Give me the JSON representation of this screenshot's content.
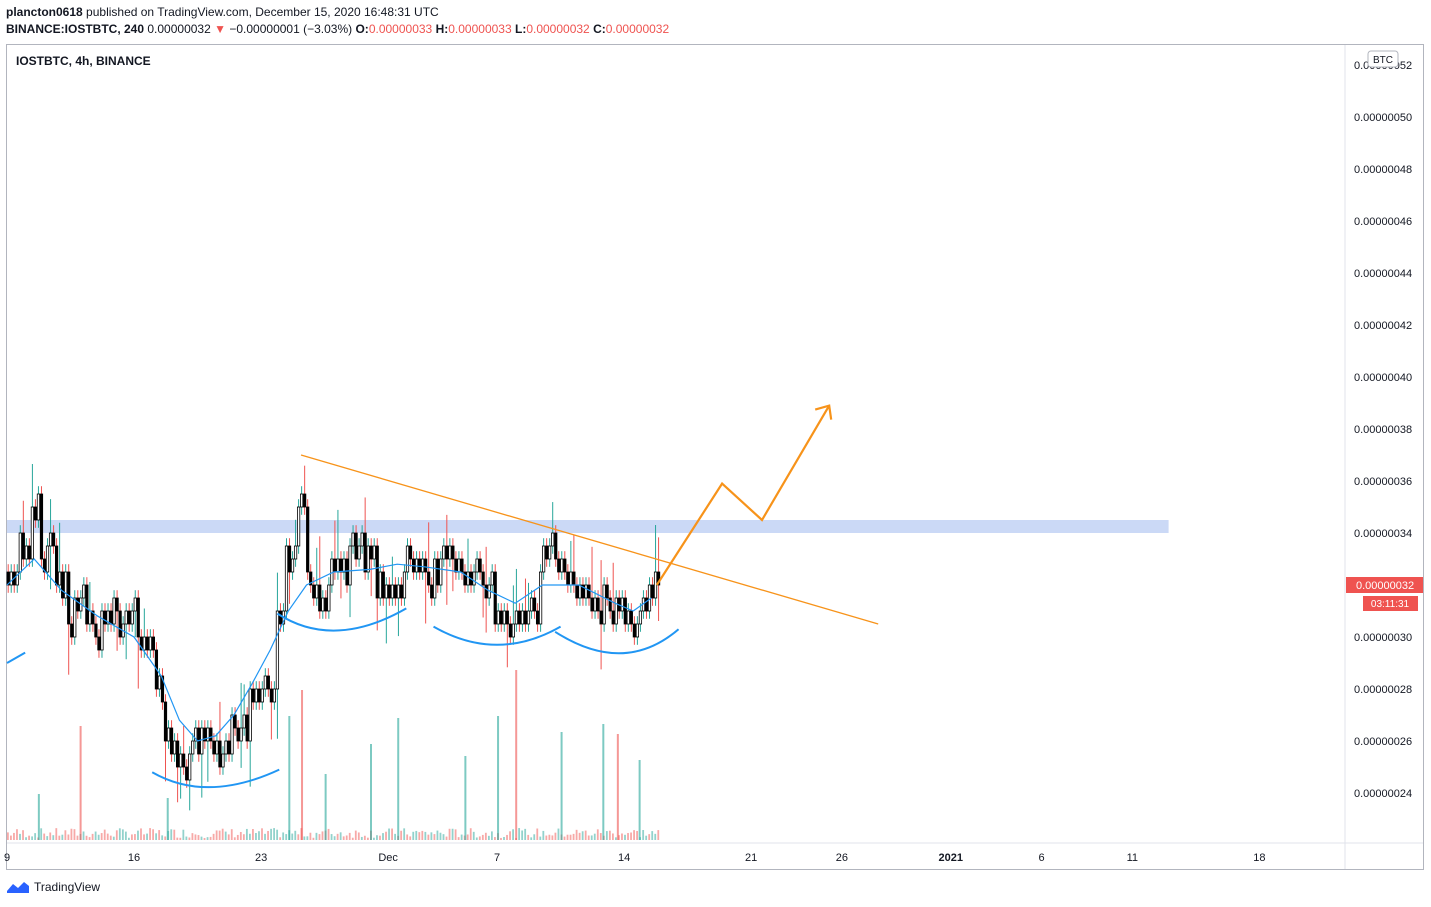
{
  "header": {
    "author": "plancton0618",
    "published_text": "published on TradingView.com, December 15, 2020 16:48:31 UTC",
    "symbol": "BINANCE:IOSTBTC, 240",
    "last_price": "0.00000032",
    "change": "−0.00000001 (−3.03%)",
    "open_label": "O:",
    "open": "0.00000033",
    "high_label": "H:",
    "high": "0.00000033",
    "low_label": "L:",
    "low": "0.00000032",
    "close_label": "C:",
    "close": "0.00000032"
  },
  "chart_title": "IOSTBTC, 4h, BINANCE",
  "currency_badge": "BTC",
  "price_tag": {
    "value": "0.00000032",
    "countdown": "03:11:31"
  },
  "footer": {
    "brand": "TradingView"
  },
  "colors": {
    "up": "#26a69a",
    "down": "#ef5350",
    "ma": "#2196f3",
    "trend": "#f7931a",
    "zone": "#c5d5f5",
    "arcs": "#2196f3"
  },
  "chart_data": {
    "type": "candlestick",
    "y_scale_multiplier": 1e-08,
    "ylim": [
      22.2,
      53.5
    ],
    "y_ticks": [
      {
        "v": 52,
        "label": "0.00000052"
      },
      {
        "v": 50,
        "label": "0.00000050"
      },
      {
        "v": 48,
        "label": "0.00000048"
      },
      {
        "v": 46,
        "label": "0.00000046"
      },
      {
        "v": 44,
        "label": "0.00000044"
      },
      {
        "v": 42,
        "label": "0.00000042"
      },
      {
        "v": 40,
        "label": "0.00000040"
      },
      {
        "v": 38,
        "label": "0.00000038"
      },
      {
        "v": 36,
        "label": "0.00000036"
      },
      {
        "v": 34,
        "label": "0.00000034"
      },
      {
        "v": 30,
        "label": "0.00000030"
      },
      {
        "v": 28,
        "label": "0.00000028"
      },
      {
        "v": 26,
        "label": "0.00000026"
      },
      {
        "v": 24,
        "label": "0.00000024"
      }
    ],
    "x_ticks": [
      {
        "day": 9,
        "label": "9",
        "bold": false
      },
      {
        "day": 16,
        "label": "16",
        "bold": false
      },
      {
        "day": 23,
        "label": "23",
        "bold": false
      },
      {
        "day": 30,
        "label": "Dec",
        "bold": false
      },
      {
        "day": 36,
        "label": "7",
        "bold": false
      },
      {
        "day": 43,
        "label": "14",
        "bold": false
      },
      {
        "day": 50,
        "label": "21",
        "bold": false
      },
      {
        "day": 55,
        "label": "26",
        "bold": false
      },
      {
        "day": 61,
        "label": "2021",
        "bold": true
      },
      {
        "day": 66,
        "label": "6",
        "bold": false
      },
      {
        "day": 71,
        "label": "11",
        "bold": false
      },
      {
        "day": 78,
        "label": "18",
        "bold": false
      }
    ],
    "price_segments": [
      [
        9.0,
        32.5
      ],
      [
        9.5,
        33.5
      ],
      [
        10.3,
        35
      ],
      [
        10.8,
        33.5
      ],
      [
        11.5,
        32
      ],
      [
        12.2,
        31
      ],
      [
        13.2,
        30.5
      ],
      [
        14.0,
        31
      ],
      [
        15.0,
        30.5
      ],
      [
        16.2,
        29.5
      ],
      [
        17.0,
        28
      ],
      [
        17.6,
        26
      ],
      [
        18.2,
        25.5
      ],
      [
        19.0,
        26
      ],
      [
        20.3,
        25.5
      ],
      [
        21.2,
        26.5
      ],
      [
        22.2,
        28
      ],
      [
        23.0,
        28.5
      ],
      [
        23.8,
        31
      ],
      [
        24.3,
        33
      ],
      [
        24.9,
        35
      ],
      [
        25.4,
        32
      ],
      [
        26.0,
        31.5
      ],
      [
        26.8,
        32.5
      ],
      [
        27.8,
        33.5
      ],
      [
        28.6,
        33
      ],
      [
        29.2,
        32
      ],
      [
        30.0,
        31.5
      ],
      [
        30.8,
        33
      ],
      [
        31.8,
        32.5
      ],
      [
        32.8,
        33
      ],
      [
        33.8,
        32.5
      ],
      [
        34.8,
        32
      ],
      [
        35.8,
        31
      ],
      [
        36.8,
        30.5
      ],
      [
        37.8,
        31
      ],
      [
        38.3,
        33
      ],
      [
        39.2,
        32.5
      ],
      [
        40.2,
        32
      ],
      [
        41.2,
        31.5
      ],
      [
        42.2,
        31
      ],
      [
        43.2,
        30.5
      ],
      [
        43.8,
        31
      ],
      [
        44.3,
        32
      ],
      [
        44.8,
        32.5
      ]
    ],
    "ma": [
      [
        9.0,
        32
      ],
      [
        10.5,
        33
      ],
      [
        12.0,
        31.8
      ],
      [
        14.0,
        30.8
      ],
      [
        16.0,
        30
      ],
      [
        17.5,
        28.5
      ],
      [
        18.5,
        26.8
      ],
      [
        19.5,
        26
      ],
      [
        20.5,
        26.2
      ],
      [
        21.5,
        27
      ],
      [
        22.5,
        28.2
      ],
      [
        23.5,
        29.5
      ],
      [
        24.5,
        31
      ],
      [
        25.5,
        32
      ],
      [
        27.0,
        32.5
      ],
      [
        29.0,
        32.6
      ],
      [
        30.5,
        32.8
      ],
      [
        32.0,
        32.7
      ],
      [
        34.0,
        32.5
      ],
      [
        35.5,
        31.8
      ],
      [
        37.0,
        31.3
      ],
      [
        38.5,
        32
      ],
      [
        40.5,
        32
      ],
      [
        42.5,
        31.3
      ],
      [
        43.5,
        31
      ],
      [
        44.5,
        31.5
      ]
    ],
    "resistance_zone": {
      "x": [
        9,
        73
      ],
      "y": [
        34.0,
        34.5
      ]
    },
    "trendline": [
      [
        25.2,
        37.0
      ],
      [
        57.0,
        30.5
      ]
    ],
    "projection": [
      [
        44.8,
        32.0
      ],
      [
        48.4,
        35.9
      ],
      [
        50.6,
        34.5
      ],
      [
        54.3,
        38.9
      ]
    ],
    "arcs": [
      {
        "from": [
          17.0,
          24.8
        ],
        "ctrl": [
          20.0,
          23.6
        ],
        "to": [
          24.0,
          24.9
        ]
      },
      {
        "from": [
          23.9,
          30.9
        ],
        "ctrl": [
          27.0,
          29.5
        ],
        "to": [
          31.0,
          31.1
        ]
      },
      {
        "from": [
          32.5,
          30.4
        ],
        "ctrl": [
          36.0,
          29.0
        ],
        "to": [
          39.5,
          30.4
        ]
      },
      {
        "from": [
          39.2,
          30.2
        ],
        "ctrl": [
          43.0,
          28.5
        ],
        "to": [
          46.0,
          30.3
        ]
      },
      {
        "from": [
          9.0,
          29.0
        ],
        "ctrl": [
          9.5,
          29.2
        ],
        "to": [
          10.0,
          29.4
        ]
      }
    ],
    "volume_spikes": [
      {
        "x": 10.7,
        "h": 0.23,
        "up": true
      },
      {
        "x": 13.0,
        "h": 0.57,
        "up": false
      },
      {
        "x": 17.8,
        "h": 0.21,
        "up": true
      },
      {
        "x": 24.5,
        "h": 0.62,
        "up": true
      },
      {
        "x": 25.2,
        "h": 0.75,
        "up": false
      },
      {
        "x": 26.5,
        "h": 0.33,
        "up": true
      },
      {
        "x": 29.0,
        "h": 0.48,
        "up": true
      },
      {
        "x": 30.5,
        "h": 0.61,
        "up": true
      },
      {
        "x": 34.2,
        "h": 0.42,
        "up": true
      },
      {
        "x": 36.0,
        "h": 0.62,
        "up": true
      },
      {
        "x": 37.0,
        "h": 0.85,
        "up": false
      },
      {
        "x": 39.5,
        "h": 0.54,
        "up": true
      },
      {
        "x": 41.8,
        "h": 0.58,
        "up": true
      },
      {
        "x": 42.6,
        "h": 0.53,
        "up": false
      },
      {
        "x": 43.8,
        "h": 0.4,
        "up": true
      }
    ]
  }
}
